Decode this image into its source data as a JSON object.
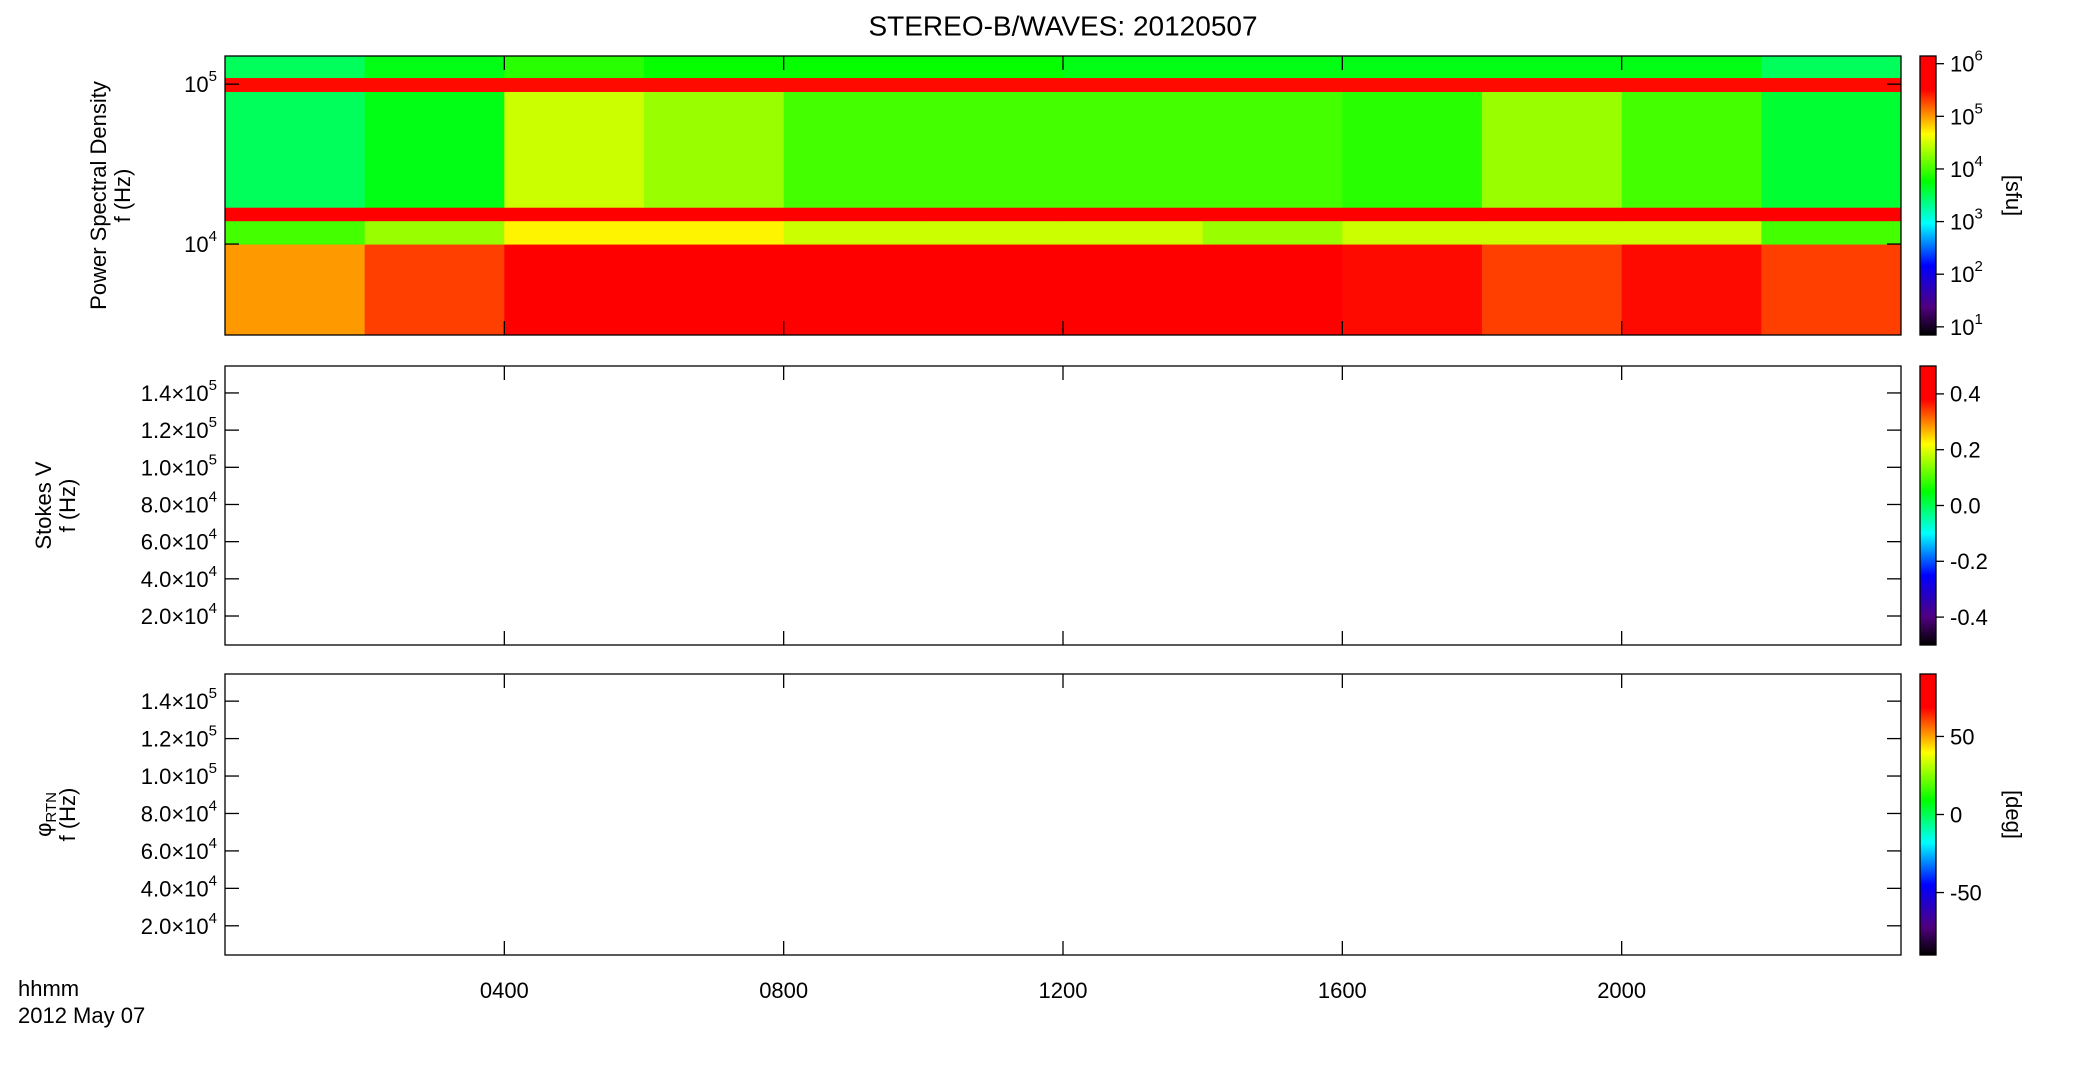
{
  "chart_data": [
    {
      "type": "heatmap",
      "title": "STEREO-B/WAVES: 20120507",
      "ylabel": [
        "Power Spectral Density",
        "f (Hz)"
      ],
      "x_edges": [
        0,
        2,
        4,
        6,
        8,
        10,
        12,
        14,
        16,
        18,
        20,
        22,
        24
      ],
      "y_edges": [
        2700,
        10000,
        14000,
        17000,
        90000,
        110000,
        150000
      ],
      "values": [
        [
          100000,
          200000,
          500000,
          500000,
          500000,
          400000,
          400000,
          400000,
          300000,
          200000,
          300000,
          200000
        ],
        [
          10000,
          20000,
          50000,
          50000,
          30000,
          30000,
          30000,
          20000,
          30000,
          30000,
          30000,
          10000
        ],
        [
          400000,
          500000,
          500000,
          500000,
          500000,
          500000,
          500000,
          500000,
          500000,
          500000,
          500000,
          400000
        ],
        [
          3000,
          5000,
          30000,
          20000,
          10000,
          10000,
          10000,
          10000,
          8000,
          20000,
          10000,
          4000
        ],
        [
          300000,
          300000,
          300000,
          300000,
          300000,
          300000,
          300000,
          300000,
          300000,
          300000,
          300000,
          300000
        ],
        [
          3000,
          5000,
          8000,
          6000,
          6000,
          6000,
          5000,
          5000,
          5000,
          5000,
          5000,
          3000
        ]
      ],
      "ylog": true,
      "ylim": [
        2700,
        150000
      ],
      "yticks": [
        {
          "value": 10000,
          "label": "10^4"
        },
        {
          "value": 100000,
          "label": "10^5"
        }
      ],
      "colorbar": {
        "log": true,
        "lim": [
          7,
          1400000
        ],
        "label": "[sfu]",
        "ticks": [
          {
            "value": 10,
            "label": "10^1"
          },
          {
            "value": 100,
            "label": "10^2"
          },
          {
            "value": 1000,
            "label": "10^3"
          },
          {
            "value": 10000,
            "label": "10^4"
          },
          {
            "value": 100000,
            "label": "10^5"
          },
          {
            "value": 1000000,
            "label": "10^6"
          }
        ]
      }
    },
    {
      "type": "heatmap",
      "ylabel": [
        "Stokes V",
        "f (Hz)"
      ],
      "ylim": [
        4400,
        154500
      ],
      "yticks": [
        {
          "value": 20000,
          "label": "2.0×10^4"
        },
        {
          "value": 40000,
          "label": "4.0×10^4"
        },
        {
          "value": 60000,
          "label": "6.0×10^4"
        },
        {
          "value": 80000,
          "label": "8.0×10^4"
        },
        {
          "value": 100000,
          "label": "1.0×10^5"
        },
        {
          "value": 120000,
          "label": "1.2×10^5"
        },
        {
          "value": 140000,
          "label": "1.4×10^5"
        }
      ],
      "colorbar": {
        "log": false,
        "lim": [
          -0.5,
          0.5
        ],
        "ticks": [
          -0.4,
          -0.2,
          {
            "value": 0,
            "label": "0.0"
          },
          0.2,
          0.4
        ]
      }
    },
    {
      "type": "heatmap",
      "ylabel": [
        "φ_RTN",
        "f (Hz)"
      ],
      "ylim": [
        4400,
        154500
      ],
      "yticks": [
        {
          "value": 20000,
          "label": "2.0×10^4"
        },
        {
          "value": 40000,
          "label": "4.0×10^4"
        },
        {
          "value": 60000,
          "label": "6.0×10^4"
        },
        {
          "value": 80000,
          "label": "8.0×10^4"
        },
        {
          "value": 100000,
          "label": "1.0×10^5"
        },
        {
          "value": 120000,
          "label": "1.2×10^5"
        },
        {
          "value": 140000,
          "label": "1.4×10^5"
        }
      ],
      "xlim": [
        0,
        24
      ],
      "xticks": [
        {
          "value": 4,
          "label": "0400"
        },
        {
          "value": 8,
          "label": "0800"
        },
        {
          "value": 12,
          "label": "1200"
        },
        {
          "value": 16,
          "label": "1600"
        },
        {
          "value": 20,
          "label": "2000"
        }
      ],
      "colorbar": {
        "log": false,
        "lim": [
          -90,
          90
        ],
        "label": "[deg]",
        "ticks": [
          -50,
          0,
          50
        ]
      }
    }
  ],
  "time_label": "hhmm",
  "date_label": "2012 May 07"
}
